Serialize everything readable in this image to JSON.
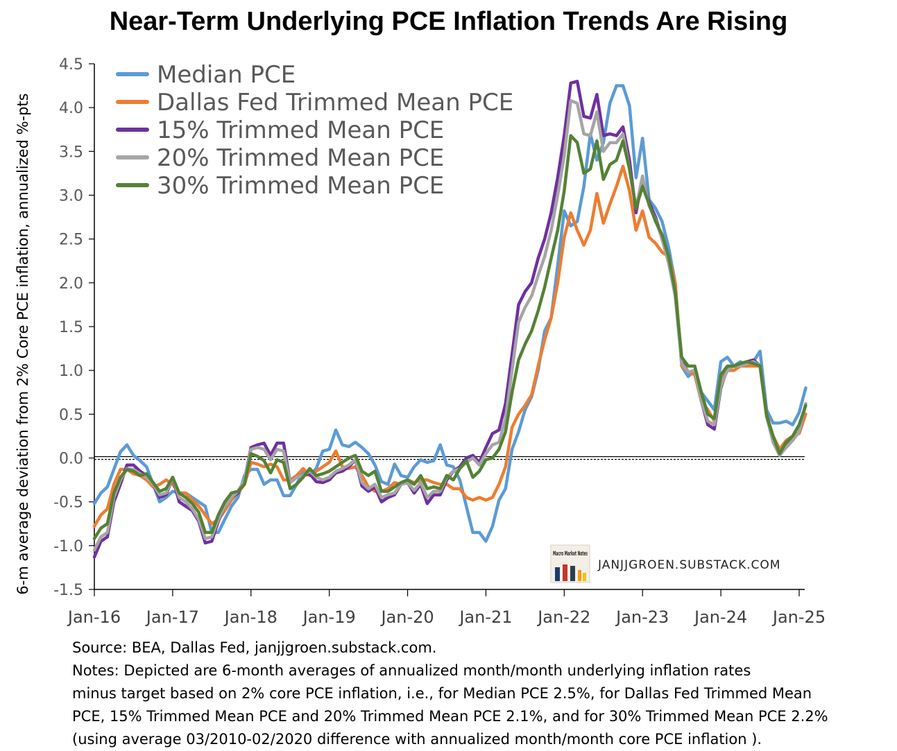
{
  "chart_data": {
    "type": "line",
    "title": "Near-Term Underlying PCE Inflation Trends Are Rising",
    "ylabel": "6-m average deviation from 2% Core PCE inflation, annualized %-pts",
    "xlabel": "",
    "ylim": [
      -1.5,
      4.5
    ],
    "yticks": [
      "4.5",
      "4.0",
      "3.5",
      "3.0",
      "2.5",
      "2.0",
      "1.5",
      "1.0",
      "0.5",
      "0.0",
      "-0.5",
      "-1.0",
      "-1.5"
    ],
    "xticks": [
      "Jan-16",
      "Jan-17",
      "Jan-18",
      "Jan-19",
      "Jan-20",
      "Jan-21",
      "Jan-22",
      "Jan-23",
      "Jan-24",
      "Jan-25"
    ],
    "x_start": "Jan-16",
    "frequency": "monthly",
    "legend_position": "top-left",
    "reference_line": 0.0,
    "series": [
      {
        "name": "Median PCE",
        "color": "#5B9BD5",
        "values": [
          -0.52,
          -0.4,
          -0.33,
          -0.13,
          0.07,
          0.15,
          0.03,
          -0.03,
          -0.1,
          -0.3,
          -0.5,
          -0.45,
          -0.38,
          -0.4,
          -0.4,
          -0.45,
          -0.5,
          -0.55,
          -0.85,
          -0.85,
          -0.7,
          -0.55,
          -0.45,
          -0.2,
          -0.13,
          -0.13,
          -0.3,
          -0.25,
          -0.25,
          -0.43,
          -0.43,
          -0.3,
          -0.15,
          -0.2,
          -0.12,
          0.08,
          0.1,
          0.32,
          0.15,
          0.13,
          0.18,
          0.12,
          0.05,
          -0.08,
          -0.27,
          -0.3,
          -0.07,
          -0.2,
          -0.22,
          -0.1,
          -0.02,
          -0.05,
          -0.03,
          0.15,
          -0.08,
          -0.1,
          -0.25,
          -0.55,
          -0.85,
          -0.85,
          -0.95,
          -0.78,
          -0.48,
          -0.35,
          0.1,
          0.3,
          0.55,
          0.7,
          1.0,
          1.45,
          1.6,
          2.2,
          2.82,
          2.65,
          2.7,
          3.1,
          3.7,
          3.4,
          3.6,
          4.05,
          4.25,
          4.25,
          4.02,
          3.2,
          3.65,
          2.95,
          2.85,
          2.7,
          2.4,
          2.0,
          1.05,
          0.93,
          1.0,
          0.75,
          0.65,
          0.55,
          1.1,
          1.15,
          1.05,
          1.1,
          1.05,
          1.1,
          1.22,
          0.55,
          0.4,
          0.4,
          0.42,
          0.38,
          0.52,
          0.8
        ]
      },
      {
        "name": "Dallas Fed Trimmed Mean PCE",
        "color": "#ED7D31",
        "values": [
          -0.78,
          -0.65,
          -0.58,
          -0.3,
          -0.13,
          -0.13,
          -0.18,
          -0.2,
          -0.25,
          -0.33,
          -0.3,
          -0.25,
          -0.3,
          -0.4,
          -0.4,
          -0.48,
          -0.55,
          -0.65,
          -0.75,
          -0.7,
          -0.6,
          -0.48,
          -0.4,
          -0.3,
          -0.05,
          -0.07,
          -0.1,
          -0.07,
          -0.1,
          -0.25,
          -0.25,
          -0.2,
          -0.12,
          -0.2,
          -0.15,
          -0.1,
          -0.05,
          0.08,
          -0.1,
          -0.12,
          -0.1,
          -0.2,
          -0.33,
          -0.38,
          -0.38,
          -0.35,
          -0.28,
          -0.3,
          -0.25,
          -0.28,
          -0.25,
          -0.25,
          -0.28,
          -0.3,
          -0.3,
          -0.35,
          -0.35,
          -0.45,
          -0.48,
          -0.45,
          -0.48,
          -0.45,
          -0.3,
          -0.1,
          0.35,
          0.5,
          0.6,
          0.72,
          1.05,
          1.35,
          1.6,
          2.0,
          2.52,
          2.8,
          2.6,
          2.43,
          2.6,
          3.02,
          2.68,
          2.9,
          3.1,
          3.33,
          3.05,
          2.6,
          2.82,
          2.52,
          2.45,
          2.35,
          2.3,
          2.0,
          1.05,
          0.98,
          0.95,
          0.65,
          0.55,
          0.42,
          0.92,
          1.0,
          1.0,
          1.05,
          1.05,
          1.05,
          1.05,
          0.5,
          0.25,
          0.1,
          0.2,
          0.25,
          0.28,
          0.5
        ]
      },
      {
        "name": "15% Trimmed Mean PCE",
        "color": "#7030A0",
        "values": [
          -1.13,
          -0.95,
          -0.9,
          -0.5,
          -0.3,
          -0.08,
          -0.08,
          -0.15,
          -0.2,
          -0.3,
          -0.45,
          -0.42,
          -0.22,
          -0.5,
          -0.55,
          -0.6,
          -0.72,
          -0.97,
          -0.95,
          -0.72,
          -0.55,
          -0.45,
          -0.4,
          -0.25,
          0.12,
          0.15,
          0.17,
          0.03,
          0.17,
          0.17,
          -0.28,
          -0.22,
          -0.2,
          -0.18,
          -0.27,
          -0.28,
          -0.25,
          -0.17,
          -0.15,
          -0.1,
          -0.02,
          -0.32,
          -0.38,
          -0.33,
          -0.5,
          -0.45,
          -0.42,
          -0.3,
          -0.28,
          -0.4,
          -0.3,
          -0.52,
          -0.42,
          -0.42,
          -0.25,
          -0.15,
          -0.1,
          0.0,
          0.03,
          -0.05,
          0.12,
          0.28,
          0.32,
          0.62,
          1.18,
          1.75,
          1.9,
          2.0,
          2.28,
          2.5,
          2.8,
          3.2,
          3.68,
          4.28,
          4.3,
          3.9,
          3.88,
          4.15,
          3.68,
          3.7,
          3.68,
          3.78,
          3.4,
          2.8,
          3.2,
          2.92,
          2.75,
          2.5,
          2.25,
          1.88,
          1.1,
          0.98,
          1.0,
          0.65,
          0.38,
          0.33,
          0.8,
          1.02,
          1.05,
          1.05,
          1.1,
          1.12,
          1.05,
          0.5,
          0.2,
          0.03,
          0.15,
          0.22,
          0.3,
          0.62
        ]
      },
      {
        "name": "20% Trimmed Mean PCE",
        "color": "#A5A5A5",
        "values": [
          -1.05,
          -0.9,
          -0.85,
          -0.45,
          -0.25,
          -0.12,
          -0.13,
          -0.18,
          -0.22,
          -0.3,
          -0.42,
          -0.4,
          -0.22,
          -0.45,
          -0.5,
          -0.58,
          -0.7,
          -0.92,
          -0.9,
          -0.7,
          -0.55,
          -0.45,
          -0.38,
          -0.25,
          0.1,
          0.12,
          0.1,
          -0.02,
          0.1,
          0.08,
          -0.28,
          -0.22,
          -0.2,
          -0.15,
          -0.22,
          -0.25,
          -0.22,
          -0.15,
          -0.12,
          -0.08,
          -0.02,
          -0.28,
          -0.35,
          -0.3,
          -0.45,
          -0.42,
          -0.4,
          -0.3,
          -0.28,
          -0.37,
          -0.28,
          -0.45,
          -0.38,
          -0.38,
          -0.22,
          -0.15,
          -0.12,
          -0.05,
          0.0,
          -0.08,
          0.05,
          0.15,
          0.18,
          0.45,
          1.0,
          1.55,
          1.72,
          1.85,
          2.08,
          2.3,
          2.6,
          3.0,
          3.45,
          4.08,
          4.05,
          3.7,
          3.68,
          3.95,
          3.5,
          3.6,
          3.6,
          3.7,
          3.3,
          2.85,
          3.22,
          2.88,
          2.72,
          2.5,
          2.22,
          1.85,
          1.08,
          0.98,
          1.0,
          0.65,
          0.42,
          0.38,
          0.82,
          1.0,
          1.05,
          1.05,
          1.08,
          1.1,
          1.05,
          0.48,
          0.18,
          0.03,
          0.12,
          0.2,
          0.3,
          0.62
        ]
      },
      {
        "name": "30% Trimmed Mean PCE",
        "color": "#548235",
        "values": [
          -0.92,
          -0.8,
          -0.75,
          -0.4,
          -0.22,
          -0.13,
          -0.15,
          -0.2,
          -0.18,
          -0.28,
          -0.38,
          -0.35,
          -0.22,
          -0.4,
          -0.45,
          -0.52,
          -0.62,
          -0.85,
          -0.85,
          -0.65,
          -0.5,
          -0.4,
          -0.38,
          -0.3,
          0.05,
          0.02,
          -0.03,
          -0.17,
          -0.02,
          -0.05,
          -0.35,
          -0.3,
          -0.22,
          -0.12,
          -0.2,
          -0.18,
          -0.15,
          -0.1,
          -0.05,
          0.0,
          0.03,
          -0.15,
          -0.2,
          -0.15,
          -0.38,
          -0.38,
          -0.33,
          -0.28,
          -0.25,
          -0.3,
          -0.2,
          -0.35,
          -0.33,
          -0.35,
          -0.2,
          -0.25,
          -0.12,
          -0.03,
          -0.22,
          -0.15,
          -0.02,
          0.0,
          0.1,
          0.3,
          0.75,
          1.12,
          1.3,
          1.45,
          1.68,
          1.95,
          2.28,
          2.6,
          3.05,
          3.68,
          3.6,
          3.25,
          3.3,
          3.62,
          3.18,
          3.35,
          3.4,
          3.62,
          3.3,
          2.85,
          3.1,
          2.9,
          2.7,
          2.55,
          2.3,
          1.9,
          1.15,
          1.05,
          1.05,
          0.75,
          0.5,
          0.45,
          0.95,
          1.05,
          1.05,
          1.08,
          1.1,
          1.08,
          1.05,
          0.48,
          0.25,
          0.05,
          0.18,
          0.25,
          0.38,
          0.6
        ]
      }
    ]
  },
  "watermark": {
    "logo_text": "Macro Market Notes",
    "site": "JANJJGROEN.SUBSTACK.COM"
  },
  "notes": {
    "source": "Source: BEA, Dallas Fed, janjjgroen.substack.com.",
    "line1": "Notes: Depicted are 6-month averages of annualized month/month underlying inflation rates",
    "line2": "minus target based on 2% core PCE inflation, i.e., for Median PCE 2.5%, for Dallas Fed Trimmed Mean",
    "line3": "PCE, 15% Trimmed Mean PCE and 20% Trimmed Mean PCE 2.1%, and for 30% Trimmed Mean PCE 2.2%",
    "line4": "(using average 03/2010-02/2020 difference with annualized month/month core PCE inflation )."
  }
}
